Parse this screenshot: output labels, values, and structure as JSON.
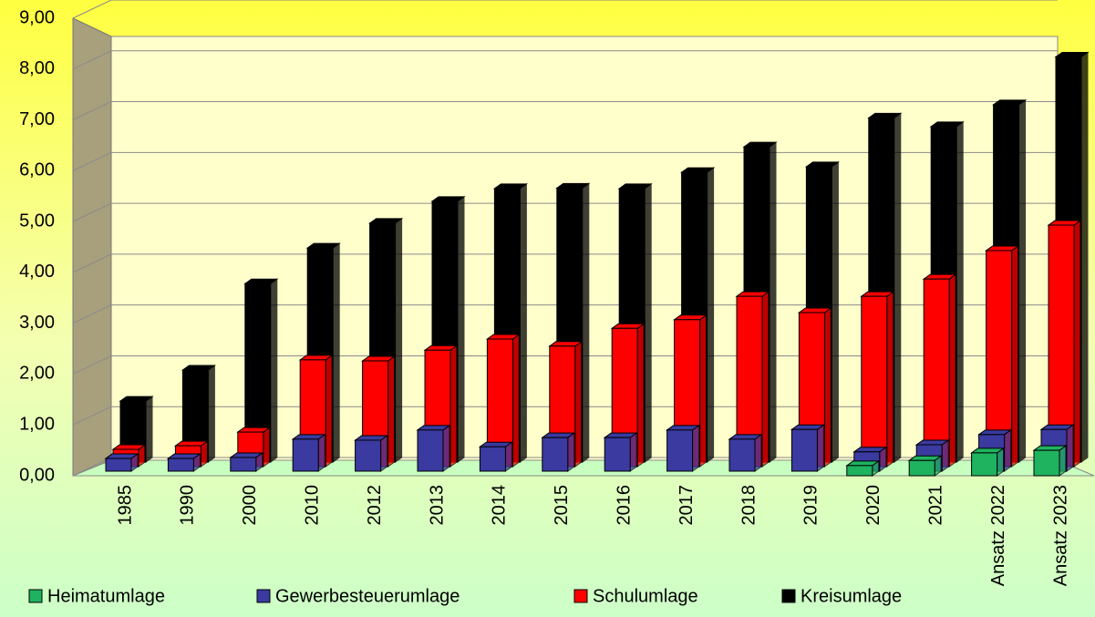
{
  "chart_data": {
    "type": "bar3d",
    "categories": [
      "1985",
      "1990",
      "2000",
      "2010",
      "2012",
      "2013",
      "2014",
      "2015",
      "2016",
      "2017",
      "2018",
      "2019",
      "2020",
      "2021",
      "Ansatz 2022",
      "Ansatz 2023"
    ],
    "series": [
      {
        "name": "Heimatumlage",
        "color": "#1fb35f",
        "values": [
          null,
          null,
          null,
          null,
          null,
          null,
          null,
          null,
          null,
          null,
          null,
          null,
          0.2,
          0.3,
          0.45,
          0.5
        ]
      },
      {
        "name": "Gewerbesteuerumlage",
        "color": "#3a3aa0",
        "values": [
          0.25,
          0.25,
          0.27,
          0.63,
          0.61,
          0.81,
          0.48,
          0.66,
          0.66,
          0.81,
          0.63,
          0.82,
          0.38,
          0.52,
          0.72,
          0.82
        ]
      },
      {
        "name": "Schulumlage",
        "color": "#ff0000",
        "values": [
          0.34,
          0.41,
          0.68,
          2.1,
          2.08,
          2.29,
          2.51,
          2.37,
          2.72,
          2.89,
          3.35,
          3.03,
          3.35,
          3.69,
          4.25,
          4.75
        ]
      },
      {
        "name": "Kreisumlage",
        "color": "#000000",
        "values": [
          1.2,
          1.81,
          3.51,
          4.21,
          4.7,
          5.13,
          5.38,
          5.39,
          5.38,
          5.7,
          6.2,
          5.81,
          6.77,
          6.6,
          7.03,
          7.97
        ]
      }
    ],
    "ylim": [
      0,
      9
    ],
    "yticks": [
      {
        "value": 0,
        "label": "0,00"
      },
      {
        "value": 1,
        "label": "1,00"
      },
      {
        "value": 2,
        "label": "2,00"
      },
      {
        "value": 3,
        "label": "3,00"
      },
      {
        "value": 4,
        "label": "4,00"
      },
      {
        "value": 5,
        "label": "5,00"
      },
      {
        "value": 6,
        "label": "6,00"
      },
      {
        "value": 7,
        "label": "7,00"
      },
      {
        "value": 8,
        "label": "8,00"
      },
      {
        "value": 9,
        "label": "9,00"
      }
    ],
    "grid": true,
    "legend": "bottom"
  }
}
